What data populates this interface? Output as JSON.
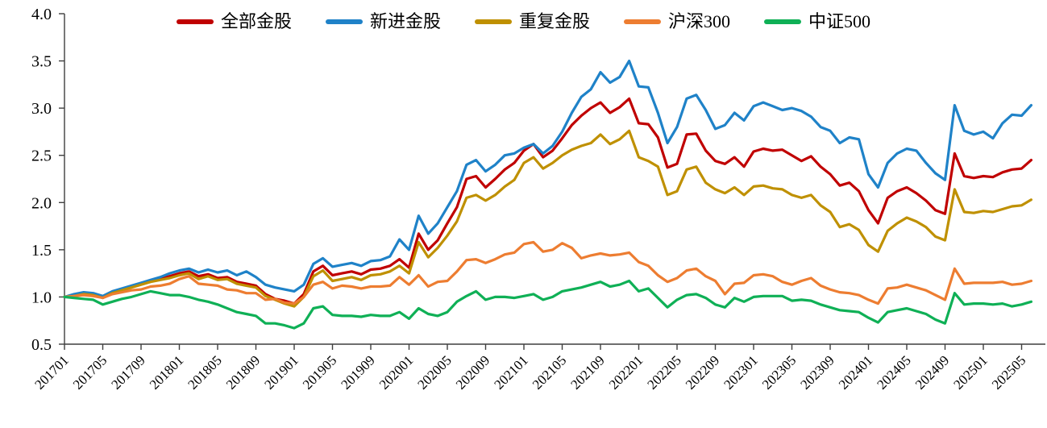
{
  "chart_data": {
    "type": "line",
    "title": "",
    "grid": false,
    "legend_position": "top",
    "ylim": [
      0.5,
      4.0
    ],
    "y_ticks": [
      0.5,
      1.0,
      1.5,
      2.0,
      2.5,
      3.0,
      3.5,
      4.0
    ],
    "y_tick_labels": [
      "0.5",
      "1.0",
      "1.5",
      "2.0",
      "2.5",
      "3.0",
      "3.5",
      "4.0"
    ],
    "x_monthly_start": "201701",
    "x_monthly_end": "202506",
    "months_per_tick": 4,
    "x_tick_labels": [
      "201701",
      "201705",
      "201709",
      "201801",
      "201805",
      "201809",
      "201901",
      "201905",
      "201909",
      "202001",
      "202005",
      "202009",
      "202101",
      "202105",
      "202109",
      "202201",
      "202205",
      "202209",
      "202301",
      "202305",
      "202309",
      "202401",
      "202405",
      "202409",
      "202501",
      "202505"
    ],
    "axis_color": "#3f3f3f",
    "label_color": "#000000",
    "series": [
      {
        "name": "全部金股",
        "color": "#c00000",
        "values": [
          1.0,
          1.02,
          1.04,
          1.03,
          1.0,
          1.05,
          1.08,
          1.11,
          1.14,
          1.17,
          1.19,
          1.22,
          1.25,
          1.27,
          1.22,
          1.24,
          1.2,
          1.21,
          1.16,
          1.14,
          1.12,
          1.03,
          0.98,
          0.96,
          0.93,
          1.03,
          1.27,
          1.33,
          1.23,
          1.25,
          1.27,
          1.24,
          1.29,
          1.3,
          1.33,
          1.4,
          1.31,
          1.67,
          1.5,
          1.6,
          1.78,
          1.95,
          2.25,
          2.28,
          2.16,
          2.25,
          2.35,
          2.42,
          2.55,
          2.62,
          2.48,
          2.55,
          2.68,
          2.82,
          2.92,
          3.0,
          3.06,
          2.95,
          3.01,
          3.1,
          2.84,
          2.83,
          2.69,
          2.37,
          2.41,
          2.72,
          2.73,
          2.55,
          2.44,
          2.41,
          2.48,
          2.38,
          2.54,
          2.57,
          2.55,
          2.56,
          2.5,
          2.44,
          2.49,
          2.38,
          2.3,
          2.18,
          2.21,
          2.12,
          1.92,
          1.78,
          2.05,
          2.12,
          2.16,
          2.1,
          2.02,
          1.92,
          1.88,
          2.52,
          2.28,
          2.26,
          2.28,
          2.27,
          2.32,
          2.35,
          2.36,
          2.45
        ]
      },
      {
        "name": "新进金股",
        "color": "#1f82c8",
        "values": [
          1.0,
          1.03,
          1.05,
          1.04,
          1.01,
          1.06,
          1.09,
          1.12,
          1.15,
          1.18,
          1.21,
          1.25,
          1.28,
          1.3,
          1.26,
          1.29,
          1.26,
          1.28,
          1.23,
          1.27,
          1.21,
          1.13,
          1.1,
          1.08,
          1.06,
          1.13,
          1.35,
          1.41,
          1.32,
          1.34,
          1.36,
          1.33,
          1.38,
          1.39,
          1.43,
          1.61,
          1.5,
          1.86,
          1.67,
          1.78,
          1.95,
          2.12,
          2.4,
          2.45,
          2.33,
          2.4,
          2.5,
          2.52,
          2.58,
          2.62,
          2.52,
          2.6,
          2.75,
          2.95,
          3.12,
          3.2,
          3.38,
          3.27,
          3.33,
          3.5,
          3.23,
          3.22,
          2.95,
          2.63,
          2.8,
          3.1,
          3.14,
          2.98,
          2.78,
          2.82,
          2.95,
          2.87,
          3.02,
          3.06,
          3.02,
          2.98,
          3.0,
          2.97,
          2.91,
          2.8,
          2.76,
          2.63,
          2.69,
          2.67,
          2.3,
          2.16,
          2.42,
          2.52,
          2.57,
          2.55,
          2.42,
          2.31,
          2.24,
          3.03,
          2.76,
          2.72,
          2.75,
          2.68,
          2.84,
          2.93,
          2.92,
          3.03
        ]
      },
      {
        "name": "重复金股",
        "color": "#bf9000",
        "values": [
          1.0,
          1.01,
          1.03,
          1.02,
          0.99,
          1.04,
          1.07,
          1.1,
          1.13,
          1.16,
          1.18,
          1.2,
          1.23,
          1.25,
          1.19,
          1.22,
          1.18,
          1.19,
          1.14,
          1.12,
          1.1,
          1.01,
          0.97,
          0.93,
          0.9,
          1.0,
          1.22,
          1.28,
          1.17,
          1.19,
          1.21,
          1.18,
          1.23,
          1.24,
          1.27,
          1.33,
          1.25,
          1.58,
          1.42,
          1.52,
          1.65,
          1.8,
          2.05,
          2.08,
          2.02,
          2.08,
          2.17,
          2.24,
          2.42,
          2.48,
          2.36,
          2.42,
          2.5,
          2.56,
          2.6,
          2.63,
          2.72,
          2.62,
          2.67,
          2.76,
          2.48,
          2.44,
          2.38,
          2.08,
          2.12,
          2.35,
          2.38,
          2.21,
          2.14,
          2.1,
          2.16,
          2.08,
          2.17,
          2.18,
          2.15,
          2.14,
          2.08,
          2.05,
          2.08,
          1.97,
          1.9,
          1.74,
          1.77,
          1.71,
          1.55,
          1.48,
          1.7,
          1.78,
          1.84,
          1.8,
          1.74,
          1.64,
          1.6,
          2.14,
          1.9,
          1.89,
          1.91,
          1.9,
          1.93,
          1.96,
          1.97,
          2.03
        ]
      },
      {
        "name": "沪深300",
        "color": "#ed7d31",
        "values": [
          1.0,
          1.01,
          1.02,
          1.01,
          0.99,
          1.03,
          1.05,
          1.07,
          1.08,
          1.11,
          1.12,
          1.14,
          1.19,
          1.22,
          1.14,
          1.13,
          1.12,
          1.08,
          1.07,
          1.04,
          1.04,
          0.97,
          0.98,
          0.94,
          0.93,
          1.0,
          1.13,
          1.16,
          1.09,
          1.12,
          1.11,
          1.09,
          1.11,
          1.11,
          1.12,
          1.21,
          1.13,
          1.23,
          1.11,
          1.16,
          1.17,
          1.27,
          1.39,
          1.4,
          1.36,
          1.4,
          1.45,
          1.47,
          1.56,
          1.58,
          1.48,
          1.5,
          1.57,
          1.52,
          1.41,
          1.44,
          1.46,
          1.44,
          1.45,
          1.47,
          1.37,
          1.33,
          1.23,
          1.16,
          1.2,
          1.28,
          1.3,
          1.22,
          1.17,
          1.03,
          1.14,
          1.15,
          1.23,
          1.24,
          1.22,
          1.16,
          1.13,
          1.17,
          1.2,
          1.12,
          1.08,
          1.05,
          1.04,
          1.02,
          0.97,
          0.93,
          1.09,
          1.1,
          1.13,
          1.1,
          1.07,
          1.02,
          0.97,
          1.3,
          1.14,
          1.15,
          1.15,
          1.15,
          1.16,
          1.13,
          1.14,
          1.17
        ]
      },
      {
        "name": "中证500",
        "color": "#0fb056",
        "values": [
          1.0,
          0.99,
          0.98,
          0.97,
          0.92,
          0.95,
          0.98,
          1.0,
          1.03,
          1.06,
          1.04,
          1.02,
          1.02,
          1.0,
          0.97,
          0.95,
          0.92,
          0.88,
          0.84,
          0.82,
          0.8,
          0.72,
          0.72,
          0.7,
          0.67,
          0.72,
          0.88,
          0.9,
          0.81,
          0.8,
          0.8,
          0.79,
          0.81,
          0.8,
          0.8,
          0.84,
          0.77,
          0.88,
          0.82,
          0.8,
          0.84,
          0.95,
          1.01,
          1.06,
          0.97,
          1.0,
          1.0,
          0.99,
          1.01,
          1.03,
          0.97,
          1.0,
          1.06,
          1.08,
          1.1,
          1.13,
          1.16,
          1.11,
          1.13,
          1.17,
          1.06,
          1.09,
          0.99,
          0.89,
          0.97,
          1.02,
          1.03,
          0.99,
          0.92,
          0.89,
          0.99,
          0.95,
          1.0,
          1.01,
          1.01,
          1.01,
          0.96,
          0.97,
          0.96,
          0.92,
          0.89,
          0.86,
          0.85,
          0.84,
          0.78,
          0.73,
          0.84,
          0.86,
          0.88,
          0.85,
          0.82,
          0.76,
          0.72,
          1.04,
          0.92,
          0.93,
          0.93,
          0.92,
          0.93,
          0.9,
          0.92,
          0.95
        ]
      }
    ]
  }
}
